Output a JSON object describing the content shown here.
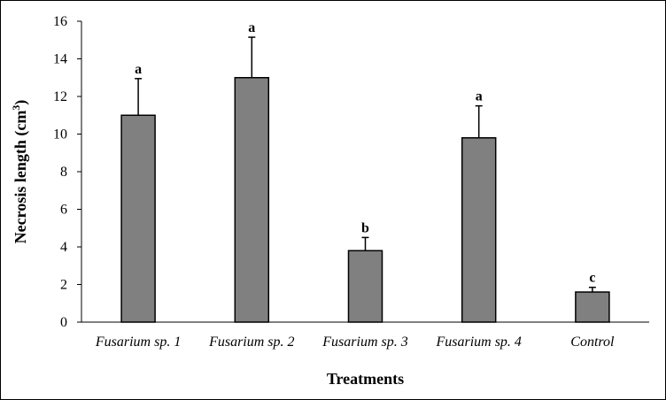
{
  "chart_data": {
    "type": "bar",
    "title": "",
    "xlabel": "Treatments",
    "ylabel": "Necrosis length (cm",
    "ylabel_superscript": "3",
    "ylabel_close": ")",
    "ylim": [
      0,
      16
    ],
    "yticks": [
      0,
      2,
      4,
      6,
      8,
      10,
      12,
      14,
      16
    ],
    "grid": false,
    "legend": "none",
    "categories": [
      "Fusarium sp. 1",
      "Fusarium sp. 2",
      "Fusarium sp. 3",
      "Fusarium sp. 4",
      "Control"
    ],
    "values": [
      11.0,
      13.0,
      3.8,
      9.8,
      1.6
    ],
    "errors": [
      1.95,
      2.15,
      0.7,
      1.7,
      0.25
    ],
    "significance": [
      "a",
      "a",
      "b",
      "a",
      "c"
    ],
    "bar_color": "#808080",
    "bar_edge_color": "#000000"
  }
}
